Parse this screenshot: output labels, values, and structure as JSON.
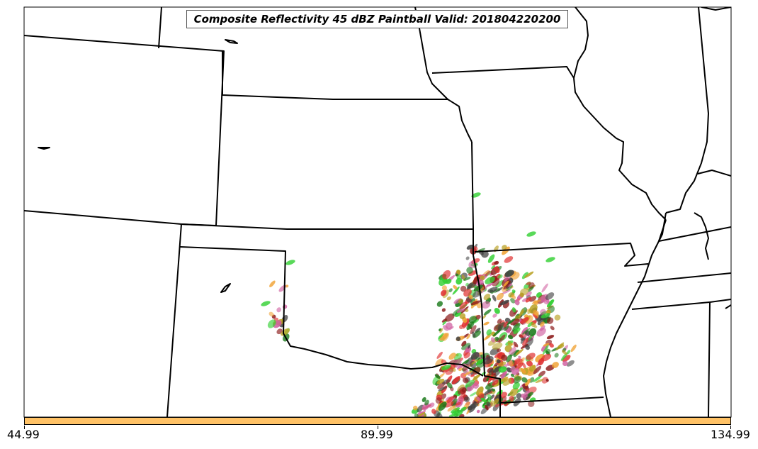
{
  "title": "Composite Reflectivity 45 dBZ Paintball Valid: 201804220200",
  "colorbar": {
    "color": "#ffc266",
    "ticks": [
      "44.99",
      "89.99",
      "134.99"
    ]
  },
  "paintball_colors": [
    "#e03030",
    "#30d030",
    "#f0a030",
    "#1a7a1a",
    "#8b1a1a",
    "#404040",
    "#b8a020",
    "#d060a0"
  ],
  "border_color": "#000000"
}
